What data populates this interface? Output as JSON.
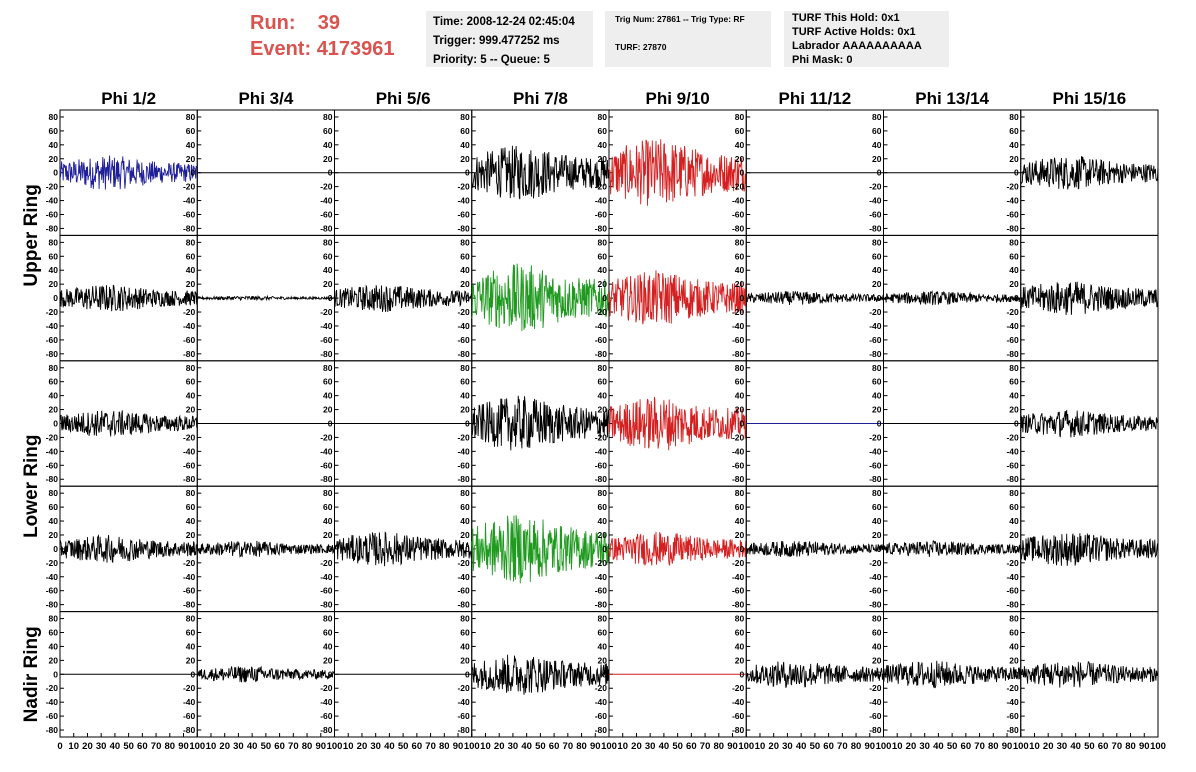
{
  "header": {
    "run_label": "Run:",
    "run_value": "39",
    "event_label": "Event:",
    "event_value": "4173961"
  },
  "info_box_1": {
    "time": "Time: 2008-12-24 02:45:04",
    "trigger": "Trigger: 999.477252 ms",
    "priority": "Priority: 5 -- Queue: 5"
  },
  "info_box_2": {
    "trig": "Trig Num: 27861 -- Trig Type: RF",
    "turf": "TURF: 27870"
  },
  "info_box_3": {
    "hold": "TURF This Hold: 0x1",
    "active": "TURF Active Holds: 0x1",
    "labrador": "Labrador AAAAAAAAAA",
    "mask": "Phi Mask: 0"
  },
  "colors": {
    "black": "#000000",
    "blue": "#1f1f9a",
    "red": "#d42020",
    "green": "#1f9a1f",
    "accent_text": "#d9534f"
  },
  "chart_data": {
    "type": "line",
    "column_labels": [
      "Phi 1/2",
      "Phi 3/4",
      "Phi 5/6",
      "Phi 7/8",
      "Phi 9/10",
      "Phi 11/12",
      "Phi 13/14",
      "Phi 15/16"
    ],
    "ring_labels": [
      "Upper Ring",
      "Lower Ring",
      "Nadir Ring"
    ],
    "ylim": [
      -90,
      90
    ],
    "xlim": [
      0,
      100
    ],
    "y_ticks": [
      "80",
      "60",
      "40",
      "20",
      "0",
      "-20",
      "-40",
      "-60",
      "-80"
    ],
    "x_ticks": [
      "0",
      "10",
      "20",
      "30",
      "40",
      "50",
      "60",
      "70",
      "80",
      "90",
      "100"
    ],
    "panel_rows": [
      [
        "blue:25",
        "flat:0",
        "flat:0",
        "black:40",
        "red:50",
        "flat:0",
        "flat:0",
        "black:25"
      ],
      [
        "black:20",
        "black:3",
        "black:20",
        "green:50",
        "red:40",
        "black:10",
        "black:10",
        "black:25"
      ],
      [
        "black:20",
        "flat:0",
        "flat:0",
        "black:40",
        "red:40",
        "blueflat:0",
        "flat:0",
        "black:20"
      ],
      [
        "black:20",
        "black:12",
        "black:25",
        "green:50",
        "red:25",
        "black:12",
        "black:12",
        "black:25"
      ],
      [
        "flat:0",
        "black:12",
        "flat:0",
        "black:30",
        "redflat:0",
        "black:20",
        "black:20",
        "black:20"
      ]
    ]
  }
}
